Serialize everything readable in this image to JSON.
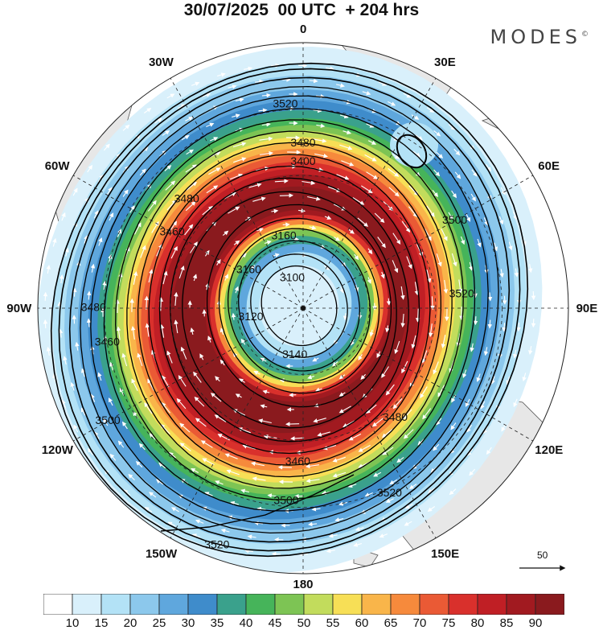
{
  "title": "30/07/2025  00 UTC  + 204 hrs",
  "brand": "MODES",
  "brand_mark": "©",
  "longitude_labels": [
    {
      "text": "0",
      "lon": 0
    },
    {
      "text": "30E",
      "lon": 30
    },
    {
      "text": "60E",
      "lon": 60
    },
    {
      "text": "90E",
      "lon": 90
    },
    {
      "text": "120E",
      "lon": 120
    },
    {
      "text": "150E",
      "lon": 150
    },
    {
      "text": "180",
      "lon": 180
    },
    {
      "text": "150W",
      "lon": -150
    },
    {
      "text": "120W",
      "lon": -120
    },
    {
      "text": "90W",
      "lon": -90
    },
    {
      "text": "60W",
      "lon": -60
    },
    {
      "text": "30W",
      "lon": -30
    }
  ],
  "contour_labels": [
    {
      "text": "3520",
      "lon": -5,
      "r": 0.77
    },
    {
      "text": "3480",
      "lon": 0,
      "r": 0.62
    },
    {
      "text": "3480",
      "lon": -47,
      "r": 0.6
    },
    {
      "text": "3400",
      "lon": 0,
      "r": 0.55
    },
    {
      "text": "3460",
      "lon": -60,
      "r": 0.57
    },
    {
      "text": "3160",
      "lon": -15,
      "r": 0.28
    },
    {
      "text": "3160",
      "lon": -55,
      "r": 0.25
    },
    {
      "text": "3100",
      "lon": -20,
      "r": 0.12
    },
    {
      "text": "3120",
      "lon": -100,
      "r": 0.2
    },
    {
      "text": "3140",
      "lon": -170,
      "r": 0.18
    },
    {
      "text": "3480",
      "lon": -90,
      "r": 0.79
    },
    {
      "text": "3460",
      "lon": -100,
      "r": 0.75
    },
    {
      "text": "3500",
      "lon": -120,
      "r": 0.85
    },
    {
      "text": "3500",
      "lon": 60,
      "r": 0.66
    },
    {
      "text": "3520",
      "lon": 85,
      "r": 0.6
    },
    {
      "text": "3480",
      "lon": 140,
      "r": 0.54
    },
    {
      "text": "3520",
      "lon": 155,
      "r": 0.77
    },
    {
      "text": "3460",
      "lon": -178,
      "r": 0.58
    },
    {
      "text": "3500",
      "lon": -175,
      "r": 0.73
    },
    {
      "text": "3520",
      "lon": -160,
      "r": 0.95
    }
  ],
  "vector_scale": {
    "label": "50"
  },
  "colorbar": {
    "ticks": [
      "10",
      "15",
      "20",
      "25",
      "30",
      "35",
      "40",
      "45",
      "50",
      "55",
      "60",
      "65",
      "70",
      "75",
      "80",
      "85",
      "90"
    ],
    "colors": [
      "#ffffff",
      "#d9f0fb",
      "#b3e2f6",
      "#8cc8ec",
      "#5fa7dd",
      "#3f8ccb",
      "#3aa18c",
      "#46b45a",
      "#7dc454",
      "#c2dc5c",
      "#f7df56",
      "#f9b54a",
      "#f68a3c",
      "#ea5a35",
      "#d9302c",
      "#c01f25",
      "#a11a20",
      "#8a1a1e"
    ]
  },
  "colors": {
    "land": "#e7e7e7",
    "coast": "#555555",
    "contour": "#000000",
    "vector": "#ffffff",
    "grid": "#222222"
  }
}
